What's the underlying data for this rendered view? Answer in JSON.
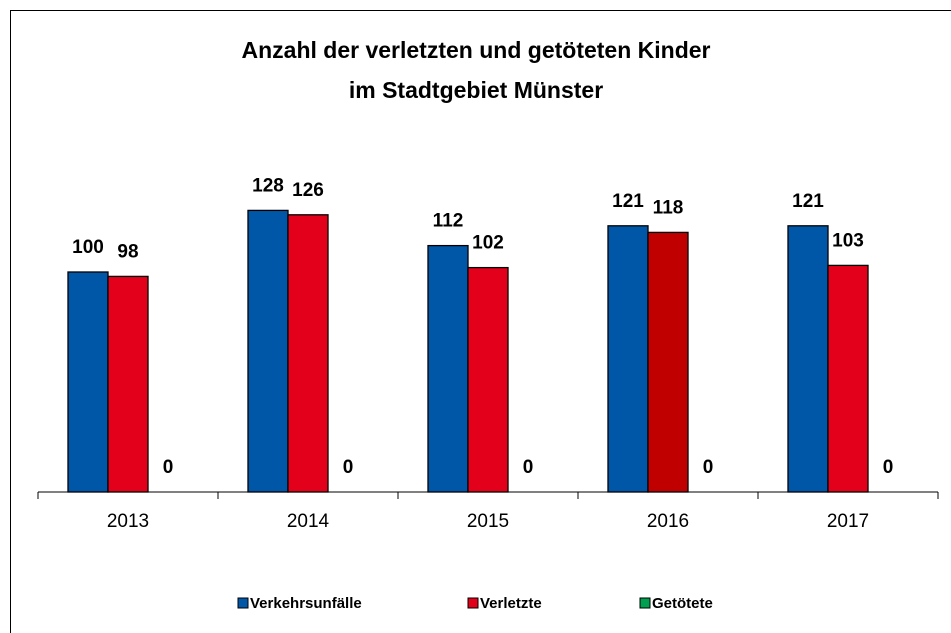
{
  "chart_data": {
    "type": "bar",
    "title": [
      "Anzahl der verletzten und getöteten Kinder",
      "im Stadtgebiet Münster"
    ],
    "categories": [
      "2013",
      "2014",
      "2015",
      "2016",
      "2017"
    ],
    "series": [
      {
        "name": "Verkehrsunfälle",
        "color": "#0057a8",
        "values": [
          100,
          128,
          112,
          121,
          121
        ]
      },
      {
        "name": "Verletzte",
        "color": "#e2001a",
        "colors": [
          "#e2001a",
          "#e2001a",
          "#e2001a",
          "#c00000",
          "#e2001a"
        ],
        "values": [
          98,
          126,
          102,
          118,
          103
        ]
      },
      {
        "name": "Getötete",
        "color": "#00a050",
        "values": [
          0,
          0,
          0,
          0,
          0
        ]
      }
    ],
    "ylim": [
      0,
      200
    ],
    "legend": "bottom"
  }
}
